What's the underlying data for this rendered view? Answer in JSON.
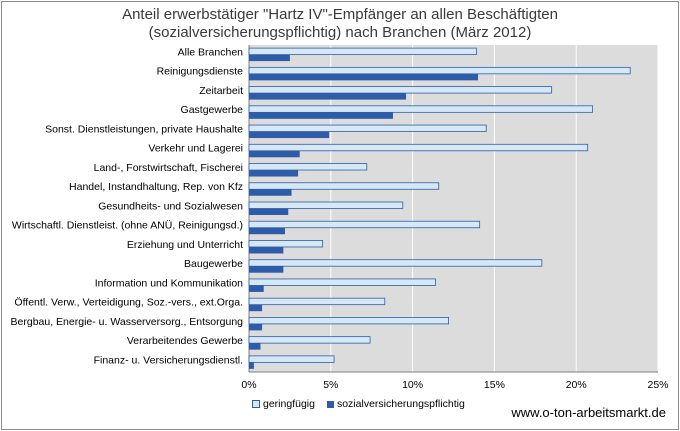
{
  "chart_data": {
    "type": "bar",
    "orientation": "horizontal",
    "title_line1": "Anteil erwerbstätiger \"Hartz IV\"-Empfänger  an allen Beschäftigten",
    "title_line2": "(sozialversicherungspflichtig) nach Branchen  (März 2012)",
    "categories": [
      "Alle Branchen",
      "Reinigungsdienste",
      "Zeitarbeit",
      "Gastgewerbe",
      "Sonst. Dienstleistungen, private Haushalte",
      "Verkehr und Lagerei",
      "Land-, Forstwirtschaft, Fischerei",
      "Handel, Instandhaltung, Rep. von Kfz",
      "Gesundheits- und Sozialwesen",
      "Wirtschaftl. Dienstleist. (ohne ANÜ, Reinigungsd.)",
      "Erziehung und Unterricht",
      "Baugewerbe",
      "Information und Kommunikation",
      "Öffentl. Verw., Verteidigung, Soz.-vers., ext.Orga.",
      "Bergbau, Energie- u. Wasserversorg., Entsorgung",
      "Verarbeitendes Gewerbe",
      "Finanz- u. Versicherungsdienstl."
    ],
    "series": [
      {
        "name": "geringfügig",
        "color": "#d6e8f5",
        "values": [
          13.9,
          23.3,
          18.5,
          21.0,
          14.5,
          20.7,
          7.2,
          11.6,
          9.4,
          14.1,
          4.5,
          17.9,
          11.4,
          8.3,
          12.2,
          7.4,
          5.2
        ]
      },
      {
        "name": "sozialversicherungspflichtig",
        "color": "#2f5ca8",
        "values": [
          2.5,
          14.0,
          9.6,
          8.8,
          4.9,
          3.1,
          3.0,
          2.6,
          2.4,
          2.2,
          2.1,
          2.1,
          0.9,
          0.8,
          0.8,
          0.7,
          0.3
        ]
      }
    ],
    "xlim": [
      0,
      25
    ],
    "xticks": [
      "0%",
      "5%",
      "10%",
      "15%",
      "20%",
      "25%"
    ],
    "grid": true,
    "legend_position": "bottom"
  },
  "source": "www.o-ton-arbeitsmarkt.de"
}
